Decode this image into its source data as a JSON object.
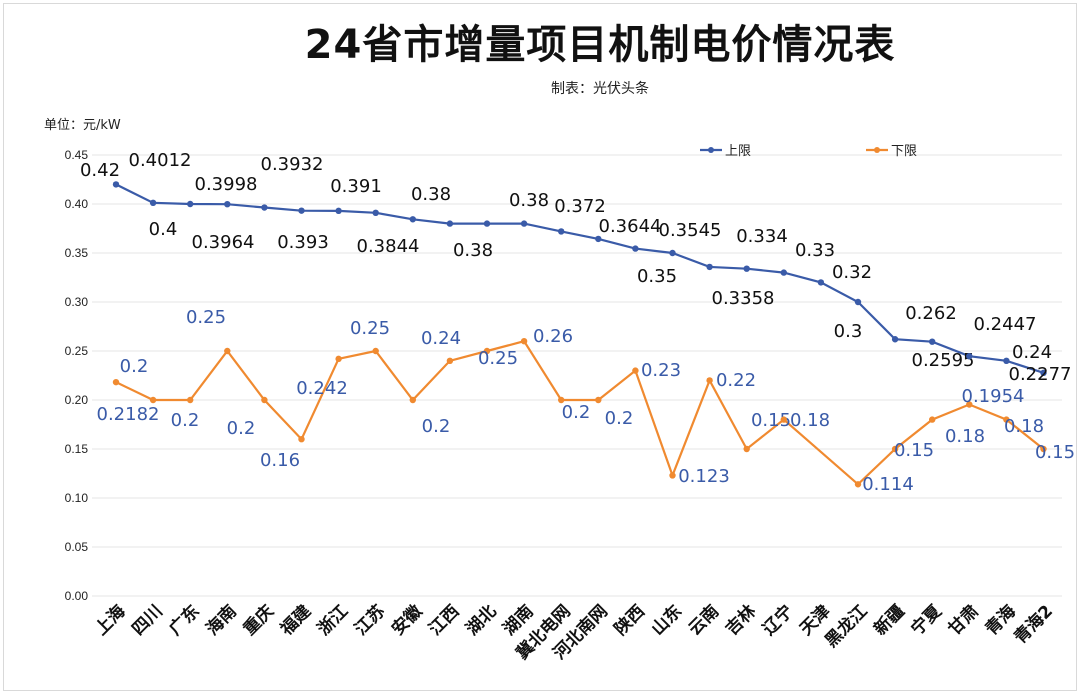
{
  "chart_data": {
    "type": "line",
    "title": "24省市增量项目机制电价情况表",
    "subtitle": "制表：光伏头条",
    "unit_label": "单位：元/kW",
    "xlabel": "",
    "ylabel": "",
    "ylim": [
      0,
      0.45
    ],
    "yticks": [
      "0.00",
      "0.05",
      "0.10",
      "0.15",
      "0.20",
      "0.25",
      "0.30",
      "0.35",
      "0.40",
      "0.45"
    ],
    "grid": true,
    "legend_position": "top-right",
    "categories": [
      "上海",
      "四川",
      "广东",
      "海南",
      "重庆",
      "福建",
      "浙江",
      "江苏",
      "安徽",
      "江西",
      "湖北",
      "湖南",
      "冀北电网",
      "河北南网",
      "陕西",
      "山东",
      "云南",
      "吉林",
      "辽宁",
      "天津",
      "黑龙江",
      "新疆",
      "宁夏",
      "甘肃",
      "青海",
      "青海2"
    ],
    "series": [
      {
        "name": "上限",
        "color": "#3a5ba8",
        "values": [
          0.42,
          0.4012,
          0.4,
          0.3998,
          0.3964,
          0.3932,
          0.393,
          0.391,
          0.3844,
          0.38,
          0.38,
          0.38,
          0.372,
          0.3644,
          0.3545,
          0.35,
          0.3358,
          0.334,
          0.33,
          0.32,
          0.3,
          0.262,
          0.2595,
          0.2447,
          0.24,
          0.2277
        ],
        "labels": [
          "0.42",
          "0.4012",
          "0.4",
          "0.3998",
          "0.3964",
          "0.3932",
          "0.393",
          "0.391",
          "0.3844",
          "0.38",
          "0.38",
          "0.38",
          "0.372",
          "0.3644",
          "0.3545",
          "0.35",
          "0.3358",
          "0.334",
          "0.33",
          "0.32",
          "0.3",
          "0.262",
          "0.2595",
          "0.2447",
          "0.24",
          "0.2277"
        ]
      },
      {
        "name": "下限",
        "color": "#f08a30",
        "values": [
          0.2182,
          0.2,
          0.2,
          0.25,
          0.2,
          0.16,
          0.242,
          0.25,
          0.2,
          0.24,
          0.25,
          0.26,
          0.2,
          0.2,
          0.23,
          0.123,
          0.22,
          0.15,
          0.18,
          null,
          0.114,
          0.15,
          0.18,
          0.1954,
          0.18,
          0.15
        ],
        "labels": [
          "0.2182",
          "0.2",
          "0.2",
          "0.25",
          "0.2",
          "0.16",
          "0.242",
          "0.25",
          "0.2",
          "0.24",
          "0.25",
          "0.26",
          "0.2",
          "0.2",
          "0.23",
          "0.123",
          "0.22",
          "0.15",
          "0.18",
          null,
          "0.114",
          "0.15",
          "0.18",
          "0.1954",
          "0.18",
          "0.15"
        ]
      }
    ]
  }
}
